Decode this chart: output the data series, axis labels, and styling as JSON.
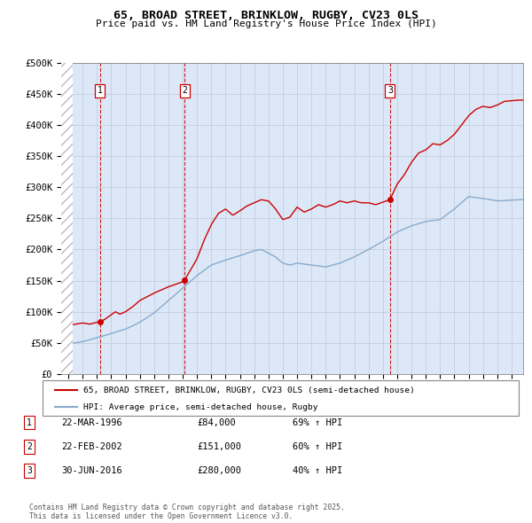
{
  "title_line1": "65, BROAD STREET, BRINKLOW, RUGBY, CV23 0LS",
  "title_line2": "Price paid vs. HM Land Registry's House Price Index (HPI)",
  "ylim": [
    0,
    500000
  ],
  "yticks": [
    0,
    50000,
    100000,
    150000,
    200000,
    250000,
    300000,
    350000,
    400000,
    450000,
    500000
  ],
  "ytick_labels": [
    "£0",
    "£50K",
    "£100K",
    "£150K",
    "£200K",
    "£250K",
    "£300K",
    "£350K",
    "£400K",
    "£450K",
    "£500K"
  ],
  "grid_color": "#c0c8d8",
  "plot_bg": "#dce8f8",
  "legend_entry1": "65, BROAD STREET, BRINKLOW, RUGBY, CV23 0LS (semi-detached house)",
  "legend_entry2": "HPI: Average price, semi-detached house, Rugby",
  "sale_color": "#cc0000",
  "hpi_color": "#88aacc",
  "sale_points": [
    {
      "date": 1996.22,
      "price": 84000,
      "label": "1"
    },
    {
      "date": 2002.14,
      "price": 151000,
      "label": "2"
    },
    {
      "date": 2016.5,
      "price": 280000,
      "label": "3"
    }
  ],
  "vline_dates": [
    1996.22,
    2002.14,
    2016.5
  ],
  "footer_line1": "Contains HM Land Registry data © Crown copyright and database right 2025.",
  "footer_line2": "This data is licensed under the Open Government Licence v3.0.",
  "table_rows": [
    {
      "num": "1",
      "date": "22-MAR-1996",
      "price": "£84,000",
      "change": "69% ↑ HPI"
    },
    {
      "num": "2",
      "date": "22-FEB-2002",
      "price": "£151,000",
      "change": "60% ↑ HPI"
    },
    {
      "num": "3",
      "date": "30-JUN-2016",
      "price": "£280,000",
      "change": "40% ↑ HPI"
    }
  ],
  "xmin": 1993.5,
  "xmax": 2025.8,
  "hatch_xend": 1994.3
}
